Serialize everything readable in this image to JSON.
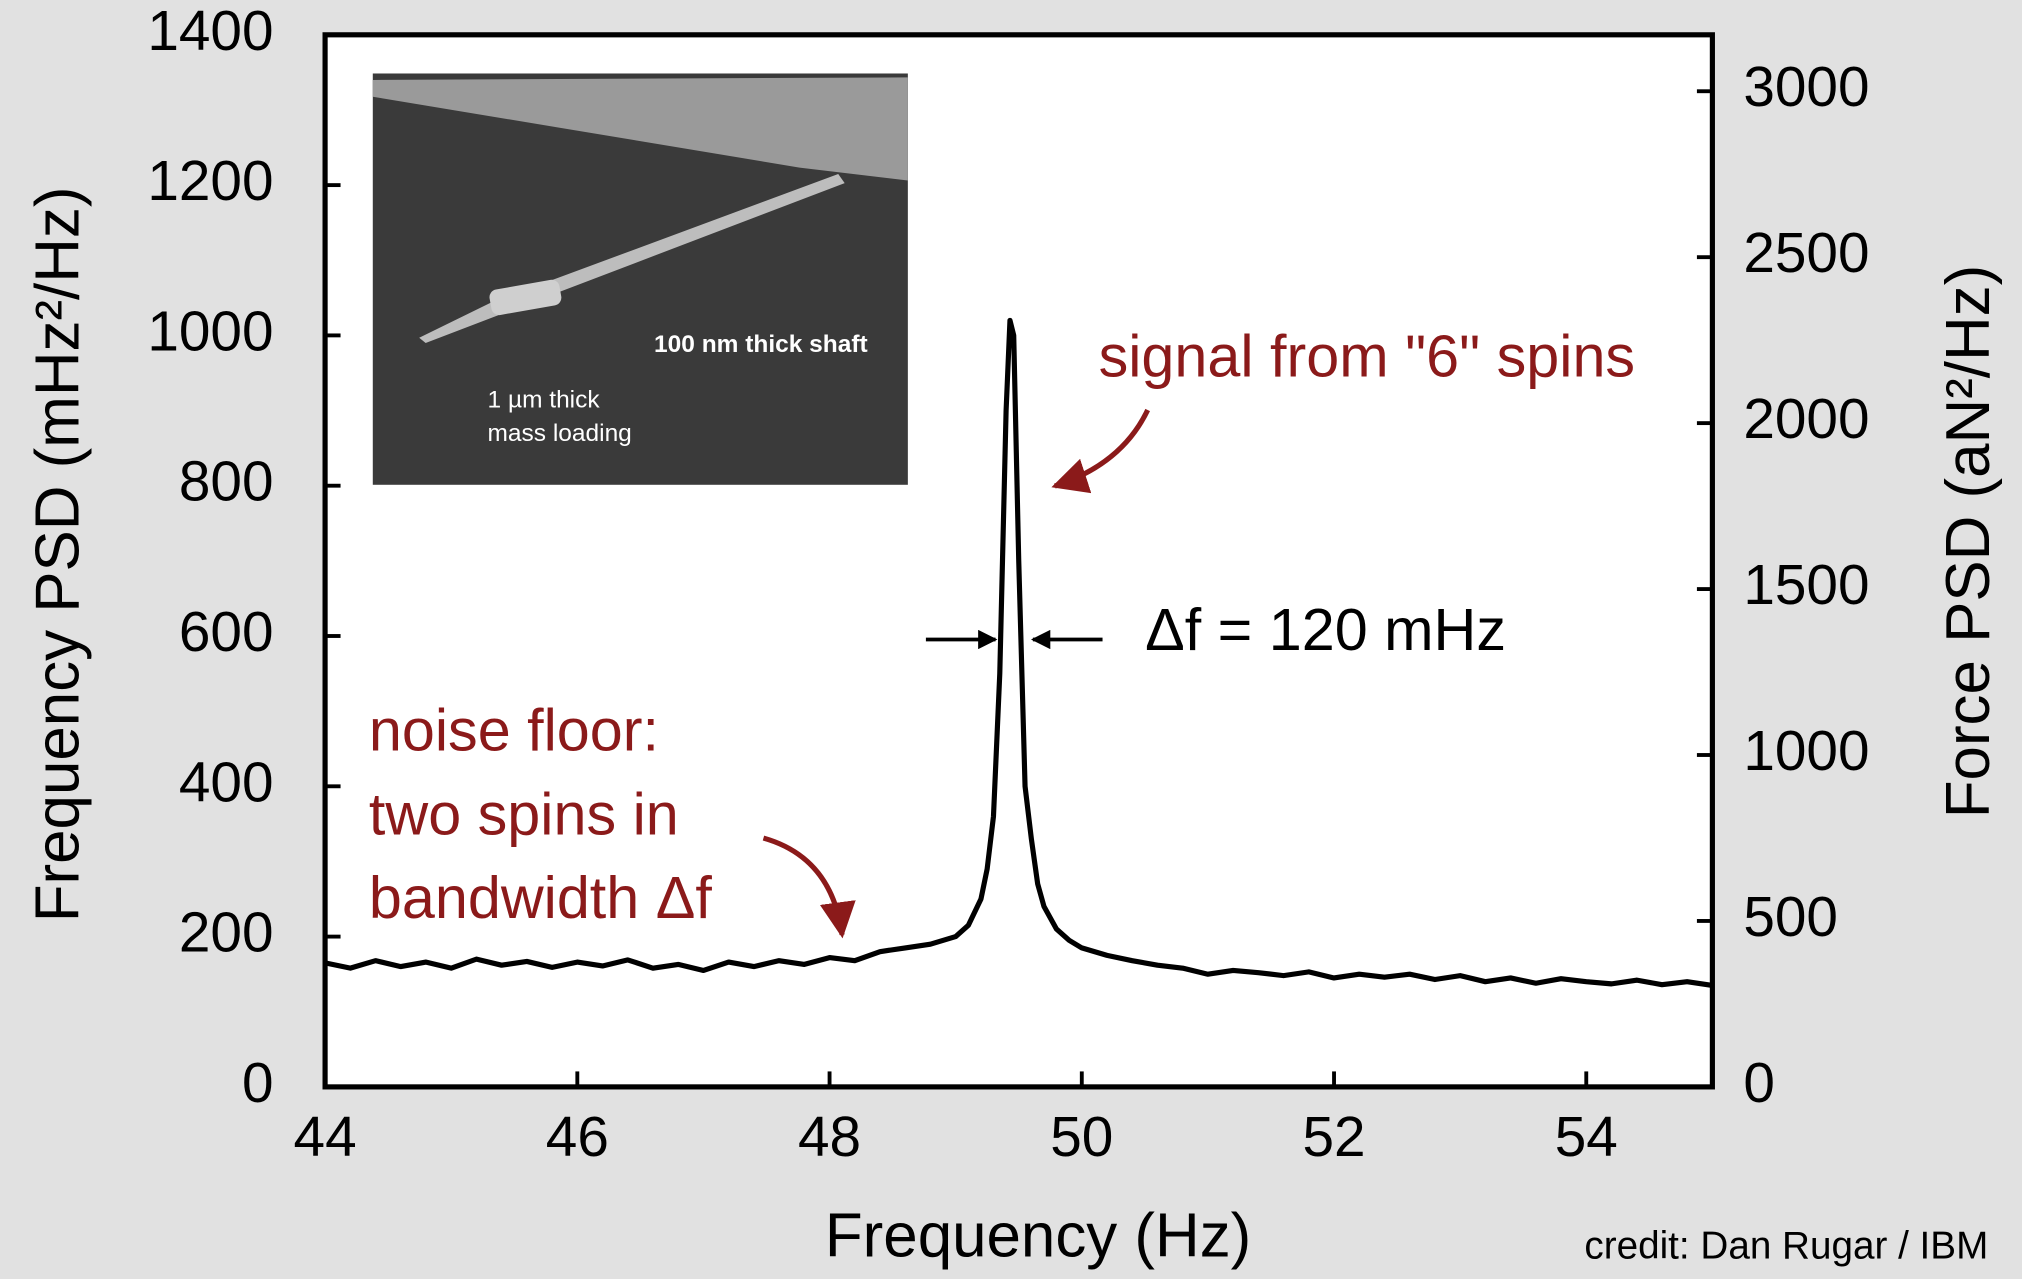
{
  "chart_data": {
    "type": "line",
    "x_label": "Frequency (Hz)",
    "y_label": "Frequency PSD (mHz²/Hz)",
    "y2_label": "Force PSD (aN²/Hz)",
    "x": [
      44,
      44.2,
      44.4,
      44.6,
      44.8,
      45,
      45.2,
      45.4,
      45.6,
      45.8,
      46,
      46.2,
      46.4,
      46.6,
      46.8,
      47,
      47.2,
      47.4,
      47.6,
      47.8,
      48,
      48.2,
      48.4,
      48.6,
      48.8,
      49,
      49.1,
      49.2,
      49.25,
      49.3,
      49.35,
      49.4,
      49.43,
      49.46,
      49.5,
      49.55,
      49.6,
      49.65,
      49.7,
      49.8,
      49.9,
      50,
      50.2,
      50.4,
      50.6,
      50.8,
      51,
      51.2,
      51.4,
      51.6,
      51.8,
      52,
      52.2,
      52.4,
      52.6,
      52.8,
      53,
      53.2,
      53.4,
      53.6,
      53.8,
      54,
      54.2,
      54.4,
      54.6,
      54.8,
      55
    ],
    "values": [
      165,
      158,
      168,
      160,
      166,
      158,
      170,
      162,
      167,
      159,
      166,
      161,
      169,
      158,
      163,
      155,
      166,
      160,
      168,
      163,
      172,
      168,
      180,
      185,
      190,
      200,
      215,
      250,
      290,
      360,
      550,
      900,
      1020,
      1000,
      700,
      400,
      330,
      270,
      240,
      210,
      195,
      185,
      175,
      168,
      162,
      158,
      150,
      155,
      152,
      148,
      153,
      145,
      150,
      146,
      150,
      143,
      148,
      140,
      145,
      138,
      144,
      140,
      137,
      142,
      136,
      140,
      135
    ],
    "color": "#000000",
    "xlim": [
      44,
      55
    ],
    "xticks": [
      44,
      46,
      48,
      50,
      52,
      54
    ],
    "ylim": [
      0,
      1400
    ],
    "yticks": [
      0,
      200,
      400,
      600,
      800,
      1000,
      1200,
      1400
    ],
    "y2lim": [
      0,
      3170
    ],
    "y2ticks": [
      0,
      500,
      1000,
      1500,
      2000,
      2500,
      3000
    ],
    "annotations": {
      "signal": "signal from \"6\" spins",
      "linewidth": "Δf = 120 mHz",
      "noise": [
        "noise floor:",
        "two spins in",
        "bandwidth Δf"
      ]
    },
    "inset": {
      "shaft": "100 nm thick shaft",
      "mass": [
        "1 µm thick",
        "mass loading"
      ]
    }
  },
  "credit": "credit: Dan Rugar / IBM"
}
